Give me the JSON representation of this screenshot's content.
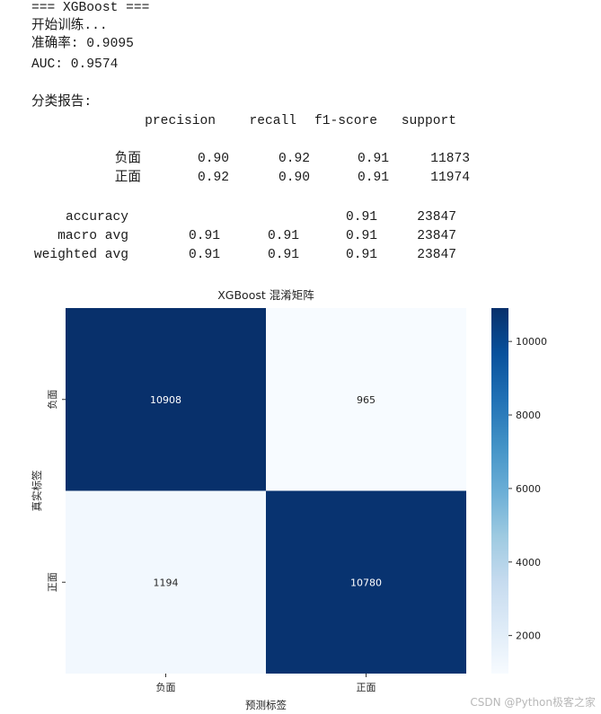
{
  "output": {
    "header": "=== XGBoost ===",
    "training": "开始训练...",
    "accuracy_line": "准确率: 0.9095",
    "auc_line": "AUC: 0.9574",
    "report_title": "分类报告:",
    "report": {
      "columns": [
        "precision",
        "recall",
        "f1-score",
        "support"
      ],
      "class_rows": [
        {
          "label": "负面",
          "values": [
            "0.90",
            "0.92",
            "0.91",
            "11873"
          ]
        },
        {
          "label": "正面",
          "values": [
            "0.92",
            "0.90",
            "0.91",
            "11974"
          ]
        }
      ],
      "summary_rows": [
        {
          "label": "accuracy",
          "values": [
            "",
            "",
            "0.91",
            "23847"
          ]
        },
        {
          "label": "macro avg",
          "values": [
            "0.91",
            "0.91",
            "0.91",
            "23847"
          ]
        },
        {
          "label": "weighted avg",
          "values": [
            "0.91",
            "0.91",
            "0.91",
            "23847"
          ]
        }
      ]
    }
  },
  "chart_data": {
    "type": "heatmap",
    "title": "XGBoost 混淆矩阵",
    "xlabel": "预测标签",
    "ylabel": "真实标签",
    "x_categories": [
      "负面",
      "正面"
    ],
    "y_categories": [
      "负面",
      "正面"
    ],
    "values": [
      [
        10908,
        965
      ],
      [
        1194,
        10780
      ]
    ],
    "colormap": "Blues",
    "colorbar": {
      "range": [
        965,
        10908
      ],
      "ticks": [
        2000,
        4000,
        6000,
        8000,
        10000
      ]
    },
    "colors": {
      "dark": "#08306b",
      "light": "#f7fbff"
    }
  },
  "watermark": "CSDN @Python极客之家"
}
